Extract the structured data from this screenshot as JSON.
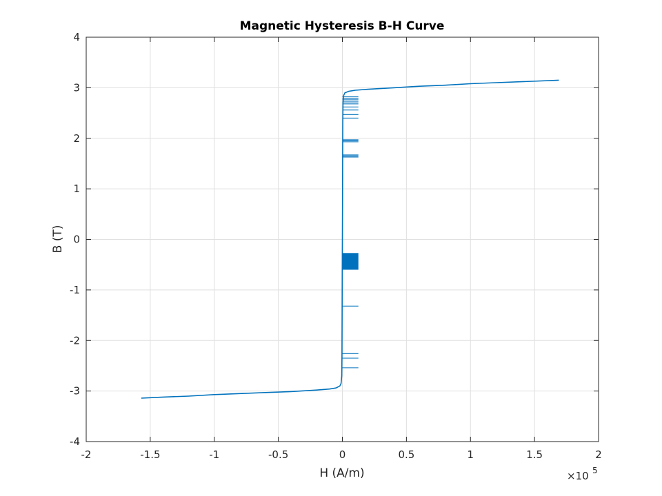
{
  "chart_data": {
    "type": "line",
    "title": "Magnetic Hysteresis B-H Curve",
    "xlabel": "H (A/m)",
    "ylabel": "B (T)",
    "x_scale_exponent_label": "×10",
    "x_scale_exponent": "5",
    "xlim": [
      -2,
      2
    ],
    "ylim": [
      -4,
      4
    ],
    "x_ticks": [
      -2,
      -1.5,
      -1,
      -0.5,
      0,
      0.5,
      1,
      1.5,
      2
    ],
    "x_tick_labels": [
      "-2",
      "-1.5",
      "-1",
      "-0.5",
      "0",
      "0.5",
      "1",
      "1.5",
      "2"
    ],
    "y_ticks": [
      -4,
      -3,
      -2,
      -1,
      0,
      1,
      2,
      3,
      4
    ],
    "y_tick_labels": [
      "-4",
      "-3",
      "-2",
      "-1",
      "0",
      "1",
      "2",
      "3",
      "4"
    ],
    "grid": true,
    "line_color": "#0072bd",
    "series": [
      {
        "x": [
          -1.57,
          -1.4,
          -1.2,
          -1.0,
          -0.8,
          -0.6,
          -0.4,
          -0.2,
          -0.1,
          -0.05,
          -0.02,
          -0.01,
          -0.005,
          -0.003,
          -0.002,
          -0.001,
          0.0,
          0.001,
          0.002,
          0.003,
          0.005,
          0.01,
          0.02,
          0.05,
          0.1,
          0.2,
          0.4,
          0.6,
          0.8,
          1.0,
          1.2,
          1.4,
          1.69
        ],
        "y": [
          -3.14,
          -3.12,
          -3.1,
          -3.07,
          -3.05,
          -3.03,
          -3.01,
          -2.98,
          -2.96,
          -2.94,
          -2.9,
          -2.85,
          -2.7,
          -2.3,
          -1.5,
          -0.6,
          0.0,
          0.7,
          1.6,
          2.3,
          2.7,
          2.85,
          2.9,
          2.93,
          2.95,
          2.97,
          3.0,
          3.03,
          3.05,
          3.08,
          3.1,
          3.12,
          3.15
        ]
      }
    ],
    "artifact_segments": {
      "x_start": 0.0,
      "x_end": 0.125,
      "y_levels": [
        2.82,
        2.79,
        2.76,
        2.72,
        2.68,
        2.62,
        2.56,
        2.47,
        2.4,
        1.97,
        1.95,
        1.93,
        1.67,
        1.65,
        1.63,
        -1.32,
        -2.26,
        -2.35,
        -2.54
      ],
      "band_y_range": [
        -0.6,
        -0.27
      ]
    }
  }
}
